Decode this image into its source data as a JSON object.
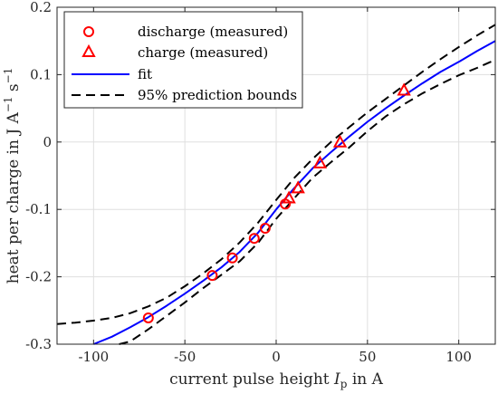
{
  "chart_data": {
    "type": "scatter",
    "xlabel": "current pulse height",
    "xlabel_symbol": "I",
    "xlabel_subscript": "p",
    "xlabel_unit": "in A",
    "ylabel": "heat per charge in J A",
    "ylabel_exp1": "−1",
    "ylabel_mid": " s",
    "ylabel_exp2": "−1",
    "xlim": [
      -120,
      120
    ],
    "ylim": [
      -0.3,
      0.2
    ],
    "xticks": [
      -100,
      -50,
      0,
      50,
      100
    ],
    "yticks": [
      -0.3,
      -0.2,
      -0.1,
      0,
      0.1,
      0.2
    ],
    "xtick_labels": [
      "-100",
      "-50",
      "0",
      "50",
      "100"
    ],
    "ytick_labels": [
      "-0.3",
      "-0.2",
      "-0.1",
      "0",
      "0.1",
      "0.2"
    ],
    "grid": true,
    "legend_position": "top-left",
    "series": [
      {
        "name": "discharge (measured)",
        "marker": "circle",
        "color": "#ff0000",
        "x": [
          -70,
          -35,
          -24,
          -12,
          -6,
          5
        ],
        "y": [
          -0.261,
          -0.198,
          -0.172,
          -0.143,
          -0.128,
          -0.092
        ]
      },
      {
        "name": "charge (measured)",
        "marker": "triangle",
        "color": "#ff0000",
        "x": [
          7,
          12,
          24,
          35,
          70
        ],
        "y": [
          -0.083,
          -0.068,
          -0.031,
          0.0,
          0.077
        ]
      },
      {
        "name": "fit",
        "style": "solid",
        "color": "#0000ff",
        "x": [
          -100,
          -90,
          -80,
          -70,
          -60,
          -50,
          -40,
          -30,
          -20,
          -10,
          0,
          10,
          20,
          30,
          40,
          50,
          60,
          70,
          80,
          90,
          100,
          110,
          120
        ],
        "y": [
          -0.3,
          -0.289,
          -0.275,
          -0.26,
          -0.243,
          -0.225,
          -0.206,
          -0.186,
          -0.163,
          -0.135,
          -0.1,
          -0.068,
          -0.039,
          -0.015,
          0.008,
          0.03,
          0.05,
          0.069,
          0.087,
          0.104,
          0.119,
          0.135,
          0.15
        ]
      },
      {
        "name": "95% prediction bounds",
        "style": "dashed",
        "color": "#000000",
        "x": [
          -120,
          -110,
          -100,
          -90,
          -80,
          -70,
          -60,
          -50,
          -40,
          -30,
          -20,
          -10,
          0,
          10,
          20,
          30,
          40,
          50,
          60,
          70,
          80,
          90,
          100,
          110,
          120
        ],
        "y": [
          -0.27,
          -0.268,
          -0.265,
          -0.261,
          -0.254,
          -0.244,
          -0.231,
          -0.214,
          -0.195,
          -0.174,
          -0.149,
          -0.12,
          -0.086,
          -0.053,
          -0.025,
          0.0,
          0.022,
          0.044,
          0.064,
          0.084,
          0.104,
          0.123,
          0.141,
          0.158,
          0.174
        ]
      },
      {
        "name": "",
        "style": "dashed",
        "color": "#000000",
        "x": [
          -86,
          -80,
          -70,
          -60,
          -50,
          -40,
          -30,
          -20,
          -10,
          0,
          10,
          20,
          30,
          40,
          50,
          60,
          70,
          80,
          90,
          100,
          110,
          120
        ],
        "y": [
          -0.3,
          -0.296,
          -0.278,
          -0.258,
          -0.238,
          -0.217,
          -0.197,
          -0.177,
          -0.15,
          -0.114,
          -0.083,
          -0.053,
          -0.03,
          -0.008,
          0.016,
          0.038,
          0.056,
          0.072,
          0.086,
          0.099,
          0.11,
          0.122
        ]
      }
    ]
  }
}
